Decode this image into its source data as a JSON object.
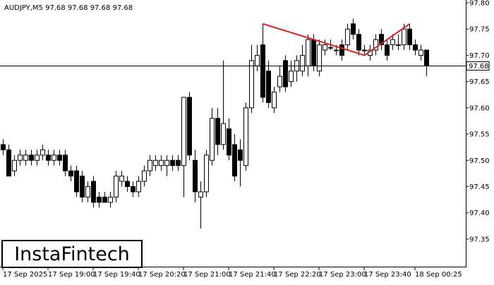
{
  "chart_data": {
    "type": "candlestick",
    "title": "AUDJPY,M5  97.68 97.68 97.68 97.68",
    "categories": [
      "17 Sep 2025",
      null,
      null,
      null,
      null,
      null,
      null,
      null,
      "17 Sep 19:00",
      null,
      null,
      null,
      null,
      null,
      null,
      null,
      "17 Sep 19:40",
      null,
      null,
      null,
      null,
      null,
      null,
      null,
      "17 Sep 20:20",
      null,
      null,
      null,
      null,
      null,
      null,
      null,
      "17 Sep 21:00",
      null,
      null,
      null,
      null,
      null,
      null,
      null,
      "17 Sep 21:40",
      null,
      null,
      null,
      null,
      null,
      null,
      null,
      "17 Sep 22:20",
      null,
      null,
      null,
      null,
      null,
      null,
      null,
      "17 Sep 23:00",
      null,
      null,
      null,
      null,
      null,
      null,
      null,
      "17 Sep 23:40",
      null,
      null,
      null,
      null,
      null,
      null,
      null,
      null,
      "18 Sep 00:25",
      null,
      null
    ],
    "open": [
      97.53,
      97.52,
      97.48,
      97.5,
      97.5,
      97.51,
      97.5,
      97.51,
      97.51,
      97.5,
      97.51,
      97.51,
      97.48,
      97.48,
      97.47,
      97.43,
      97.46,
      97.43,
      97.43,
      97.42,
      97.43,
      97.46,
      97.46,
      97.45,
      97.44,
      97.46,
      97.48,
      97.49,
      97.49,
      97.49,
      97.5,
      97.5,
      97.49,
      97.62,
      97.5,
      97.43,
      97.44,
      97.5,
      97.58,
      97.53,
      97.56,
      97.53,
      97.52,
      97.49,
      97.6,
      97.68,
      97.72,
      97.67,
      97.6,
      97.64,
      97.69,
      97.65,
      97.67,
      97.67,
      97.68,
      97.73,
      97.67,
      97.71,
      97.715,
      97.71,
      97.72,
      97.72,
      97.76,
      97.74,
      97.71,
      97.7,
      97.71,
      97.74,
      97.72,
      97.72,
      97.72,
      97.72,
      97.75,
      97.72,
      97.7,
      97.71
    ],
    "high": [
      97.54,
      97.53,
      97.51,
      97.52,
      97.52,
      97.52,
      97.52,
      97.53,
      97.52,
      97.52,
      97.52,
      97.52,
      97.49,
      97.49,
      97.48,
      97.46,
      97.47,
      97.44,
      97.44,
      97.44,
      97.48,
      97.48,
      97.47,
      97.46,
      97.47,
      97.49,
      97.51,
      97.51,
      97.51,
      97.51,
      97.51,
      97.51,
      97.62,
      97.63,
      97.52,
      97.46,
      97.52,
      97.6,
      97.6,
      97.69,
      97.58,
      97.55,
      97.54,
      97.61,
      97.72,
      97.72,
      97.76,
      97.69,
      97.64,
      97.68,
      97.7,
      97.69,
      97.7,
      97.72,
      97.74,
      97.74,
      97.73,
      97.73,
      97.73,
      97.72,
      97.73,
      97.76,
      97.77,
      97.75,
      97.72,
      97.72,
      97.74,
      97.75,
      97.73,
      97.74,
      97.74,
      97.76,
      97.76,
      97.73,
      97.72,
      97.71
    ],
    "low": [
      97.51,
      97.47,
      97.47,
      97.49,
      97.49,
      97.49,
      97.49,
      97.5,
      97.49,
      97.49,
      97.49,
      97.47,
      97.46,
      97.43,
      97.42,
      97.42,
      97.41,
      97.41,
      97.42,
      97.41,
      97.42,
      97.45,
      97.44,
      97.43,
      97.43,
      97.45,
      97.47,
      97.48,
      97.48,
      97.47,
      97.48,
      97.48,
      97.43,
      97.5,
      97.42,
      97.37,
      97.43,
      97.49,
      97.51,
      97.52,
      97.5,
      97.46,
      97.45,
      97.48,
      97.59,
      97.67,
      97.61,
      97.6,
      97.59,
      97.63,
      97.63,
      97.64,
      97.65,
      97.66,
      97.66,
      97.67,
      97.66,
      97.7,
      97.71,
      97.7,
      97.69,
      97.71,
      97.73,
      97.7,
      97.7,
      97.69,
      97.7,
      97.71,
      97.69,
      97.71,
      97.71,
      97.71,
      97.71,
      97.7,
      97.69,
      97.66
    ],
    "close": [
      97.52,
      97.47,
      97.5,
      97.51,
      97.51,
      97.5,
      97.51,
      97.52,
      97.5,
      97.51,
      97.5,
      97.48,
      97.47,
      97.44,
      97.43,
      97.45,
      97.42,
      97.42,
      97.42,
      97.43,
      97.47,
      97.47,
      97.45,
      97.44,
      97.46,
      97.48,
      97.5,
      97.5,
      97.5,
      97.5,
      97.49,
      97.49,
      97.62,
      97.51,
      97.44,
      97.44,
      97.51,
      97.58,
      97.53,
      97.57,
      97.51,
      97.47,
      97.5,
      97.6,
      97.69,
      97.7,
      97.62,
      97.61,
      97.63,
      97.66,
      97.64,
      97.67,
      97.69,
      97.7,
      97.73,
      97.68,
      97.72,
      97.72,
      97.715,
      97.71,
      97.7,
      97.75,
      97.74,
      97.71,
      97.71,
      97.71,
      97.73,
      97.72,
      97.7,
      97.73,
      97.72,
      97.75,
      97.72,
      97.71,
      97.71,
      97.68
    ],
    "pattern": {
      "color": "#e02020",
      "x": [
        46,
        64,
        72
      ],
      "y": [
        97.76,
        97.7,
        97.76
      ]
    },
    "last_price": 97.68,
    "ylim": [
      97.3055,
      97.8054
    ],
    "yticks": [
      {
        "value": 97.35,
        "label": "97.35"
      },
      {
        "value": 97.4,
        "label": "97.40"
      },
      {
        "value": 97.45,
        "label": "97.45"
      },
      {
        "value": 97.5,
        "label": "97.50"
      },
      {
        "value": 97.55,
        "label": "97.55"
      },
      {
        "value": 97.6,
        "label": "97.60"
      },
      {
        "value": 97.65,
        "label": "97.65"
      },
      {
        "value": 97.7,
        "label": "97.70"
      },
      {
        "value": 97.75,
        "label": "97.75"
      },
      {
        "value": 97.8,
        "label": "97.80"
      }
    ],
    "watermark": "InstaFintech"
  }
}
